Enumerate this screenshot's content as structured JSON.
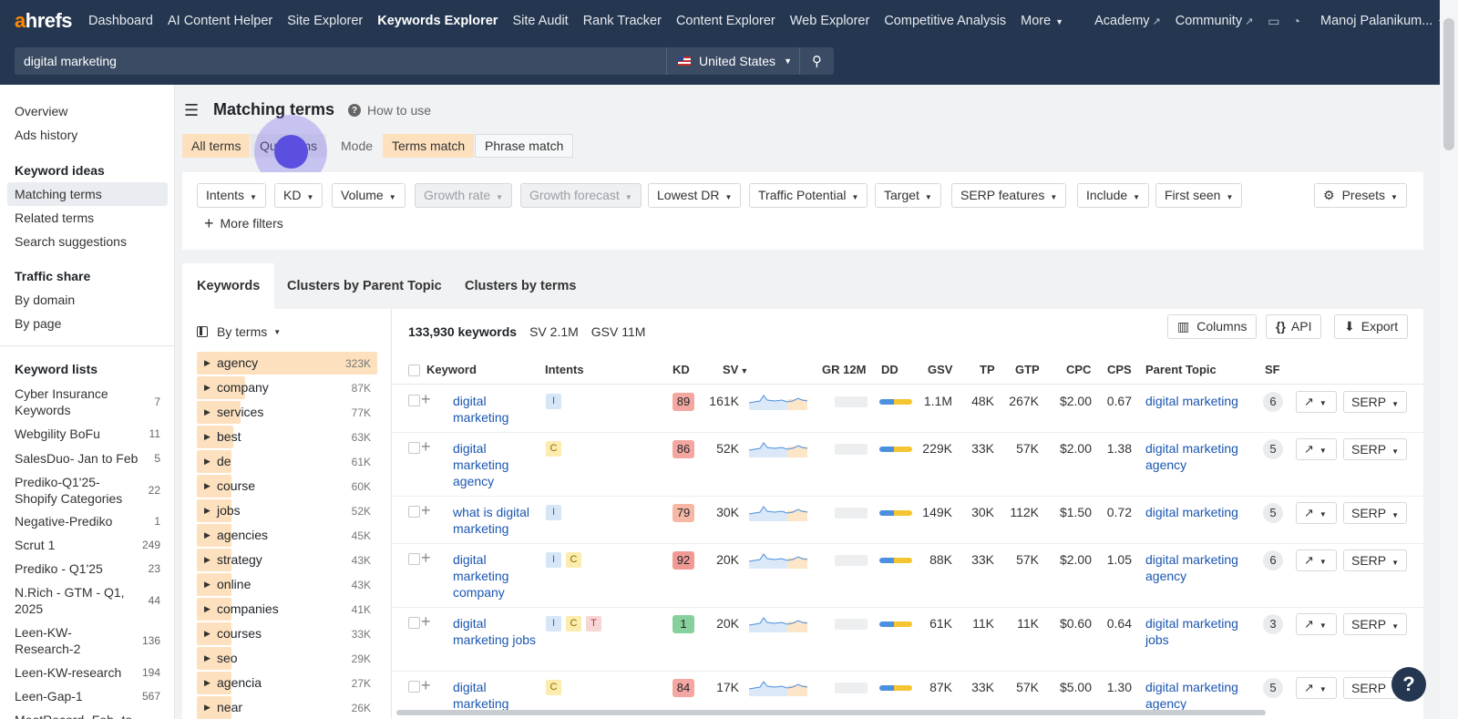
{
  "nav": {
    "logo_a": "a",
    "logo_rest": "hrefs",
    "items": [
      "Dashboard",
      "AI Content Helper",
      "Site Explorer",
      "Keywords Explorer",
      "Site Audit",
      "Rank Tracker",
      "Content Explorer",
      "Web Explorer",
      "Competitive Analysis"
    ],
    "more": "More",
    "academy": "Academy",
    "community": "Community",
    "user": "Manoj Palanikum..."
  },
  "search": {
    "value": "digital marketing",
    "country": "United States"
  },
  "sidebar": {
    "top": [
      "Overview",
      "Ads history"
    ],
    "keyword_ideas_head": "Keyword ideas",
    "keyword_ideas": [
      "Matching terms",
      "Related terms",
      "Search suggestions"
    ],
    "traffic_share_head": "Traffic share",
    "traffic_share": [
      "By domain",
      "By page"
    ],
    "keyword_lists_head": "Keyword lists",
    "keyword_lists": [
      {
        "name": "Cyber Insurance Keywords",
        "count": "7"
      },
      {
        "name": "Webgility BoFu",
        "count": "11"
      },
      {
        "name": "SalesDuo- Jan to Feb",
        "count": "5"
      },
      {
        "name": "Prediko-Q1'25-Shopify Categories",
        "count": "22"
      },
      {
        "name": "Negative-Prediko",
        "count": "1"
      },
      {
        "name": "Scrut 1",
        "count": "249"
      },
      {
        "name": "Prediko - Q1'25",
        "count": "23"
      },
      {
        "name": "N.Rich - GTM - Q1, 2025",
        "count": "44"
      },
      {
        "name": "Leen-KW-Research-2",
        "count": "136"
      },
      {
        "name": "Leen-KW-research",
        "count": "194"
      },
      {
        "name": "Leen-Gap-1",
        "count": "567"
      },
      {
        "name": "MeetRecord- Feb- to",
        "count": ""
      }
    ]
  },
  "header": {
    "title": "Matching terms",
    "how_to_use": "How to use",
    "segments": [
      "All terms",
      "Questions"
    ],
    "mode_label": "Mode",
    "modes": [
      "Terms match",
      "Phrase match"
    ]
  },
  "filters": {
    "items": [
      "Intents",
      "KD",
      "Volume",
      "Growth rate",
      "Growth forecast",
      "Lowest DR",
      "Traffic Potential",
      "Target",
      "SERP features",
      "Include",
      "First seen"
    ],
    "presets": "Presets",
    "more_filters": "More filters"
  },
  "tabs": [
    "Keywords",
    "Clusters by Parent Topic",
    "Clusters by terms"
  ],
  "terms_panel": {
    "by_terms": "By terms",
    "terms": [
      {
        "label": "agency",
        "count": "323K",
        "ratio": 1.0
      },
      {
        "label": "company",
        "count": "87K",
        "ratio": 0.27
      },
      {
        "label": "services",
        "count": "77K",
        "ratio": 0.24
      },
      {
        "label": "best",
        "count": "63K",
        "ratio": 0.2
      },
      {
        "label": "de",
        "count": "61K",
        "ratio": 0.19
      },
      {
        "label": "course",
        "count": "60K",
        "ratio": 0.19
      },
      {
        "label": "jobs",
        "count": "52K",
        "ratio": 0.16
      },
      {
        "label": "agencies",
        "count": "45K",
        "ratio": 0.14
      },
      {
        "label": "strategy",
        "count": "43K",
        "ratio": 0.13
      },
      {
        "label": "online",
        "count": "43K",
        "ratio": 0.13
      },
      {
        "label": "companies",
        "count": "41K",
        "ratio": 0.13
      },
      {
        "label": "courses",
        "count": "33K",
        "ratio": 0.1
      },
      {
        "label": "seo",
        "count": "29K",
        "ratio": 0.09
      },
      {
        "label": "agencia",
        "count": "27K",
        "ratio": 0.08
      },
      {
        "label": "near",
        "count": "26K",
        "ratio": 0.08
      }
    ]
  },
  "summary": {
    "keywords": "133,930 keywords",
    "sv": "SV 2.1M",
    "gsv": "GSV 11M"
  },
  "toolbar": {
    "columns": "Columns",
    "api": "API",
    "export": "Export"
  },
  "table": {
    "headers": [
      "Keyword",
      "Intents",
      "KD",
      "SV",
      "GR 12M",
      "DD",
      "GSV",
      "TP",
      "GTP",
      "CPC",
      "CPS",
      "Parent Topic",
      "SF"
    ],
    "serp_label": "SERP",
    "rows": [
      {
        "keyword": "digital marketing",
        "intents": [
          "I"
        ],
        "kd": "89",
        "kd_color": "#f4a7a0",
        "sv": "161K",
        "gsv": "1.1M",
        "tp": "48K",
        "gtp": "267K",
        "cpc": "$2.00",
        "cps": "0.67",
        "parent": "digital marketing",
        "sf": "6"
      },
      {
        "keyword": "digital marketing agency",
        "intents": [
          "C"
        ],
        "kd": "86",
        "kd_color": "#f4a7a0",
        "sv": "52K",
        "gsv": "229K",
        "tp": "33K",
        "gtp": "57K",
        "cpc": "$2.00",
        "cps": "1.38",
        "parent": "digital marketing agency",
        "sf": "5"
      },
      {
        "keyword": "what is digital marketing",
        "intents": [
          "I"
        ],
        "kd": "79",
        "kd_color": "#f6b7a4",
        "sv": "30K",
        "gsv": "149K",
        "tp": "30K",
        "gtp": "112K",
        "cpc": "$1.50",
        "cps": "0.72",
        "parent": "digital marketing",
        "sf": "5"
      },
      {
        "keyword": "digital marketing company",
        "intents": [
          "I",
          "C"
        ],
        "kd": "92",
        "kd_color": "#f19a94",
        "sv": "20K",
        "gsv": "88K",
        "tp": "33K",
        "gtp": "57K",
        "cpc": "$2.00",
        "cps": "1.05",
        "parent": "digital marketing agency",
        "sf": "6"
      },
      {
        "keyword": "digital marketing jobs",
        "intents": [
          "I",
          "C",
          "T"
        ],
        "kd": "1",
        "kd_color": "#86d19b",
        "sv": "20K",
        "gsv": "61K",
        "tp": "11K",
        "gtp": "11K",
        "cpc": "$0.60",
        "cps": "0.64",
        "parent": "digital marketing jobs",
        "sf": "3"
      },
      {
        "keyword": "digital marketing",
        "intents": [
          "C"
        ],
        "kd": "84",
        "kd_color": "#f4a7a0",
        "sv": "17K",
        "gsv": "87K",
        "tp": "33K",
        "gtp": "57K",
        "cpc": "$5.00",
        "cps": "1.30",
        "parent": "digital marketing agency",
        "sf": "5"
      }
    ]
  },
  "help": "?"
}
